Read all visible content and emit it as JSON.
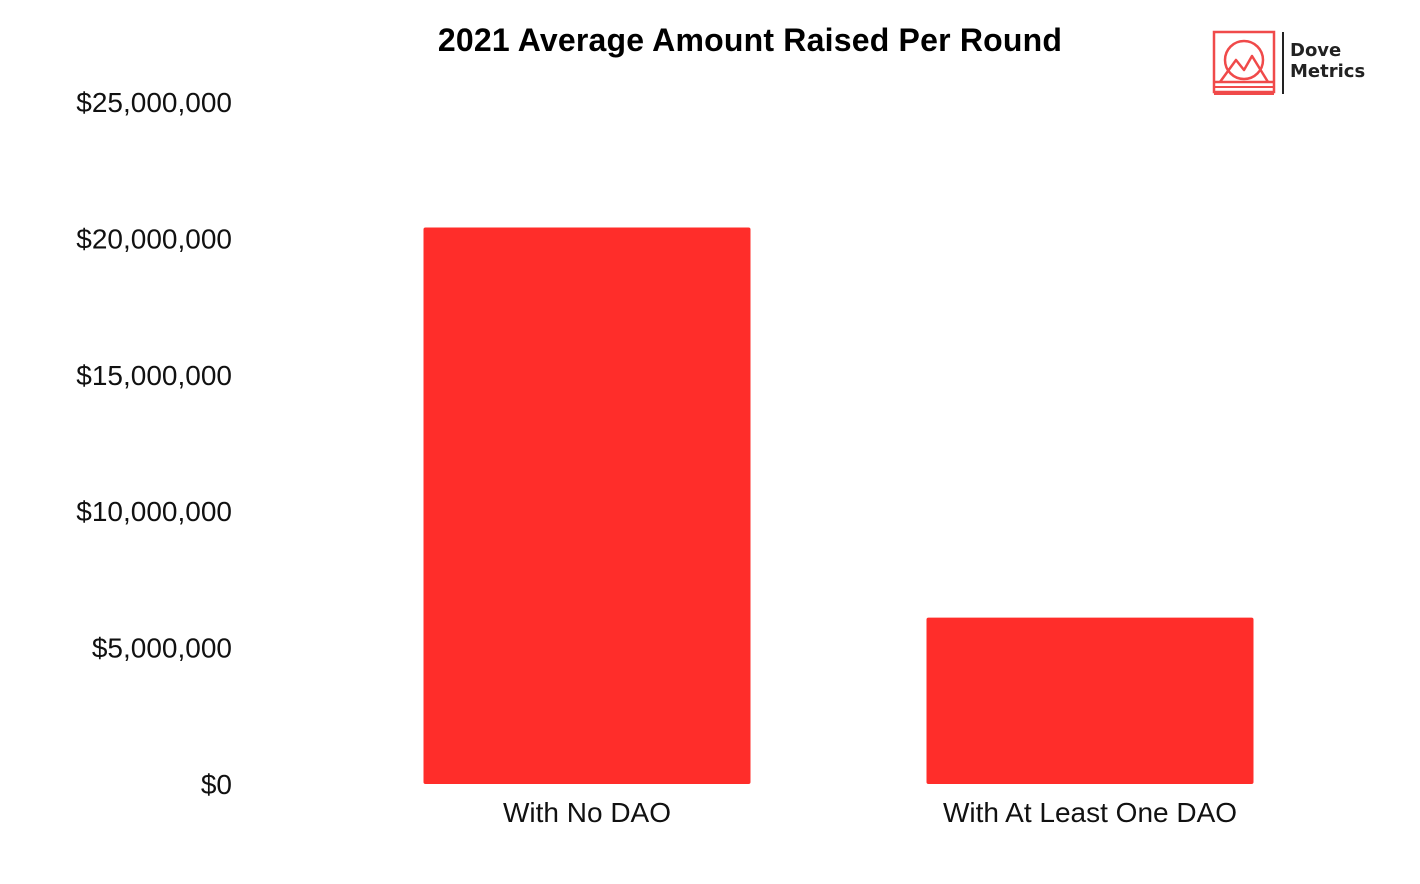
{
  "chart_data": {
    "type": "bar",
    "title": "2021 Average Amount Raised Per Round",
    "xlabel": "",
    "ylabel": "",
    "categories": [
      "With No DAO",
      "With At Least One DAO"
    ],
    "values": [
      20400000,
      6100000
    ],
    "ylim": [
      0,
      25000000
    ],
    "yticks": [
      0,
      5000000,
      10000000,
      15000000,
      20000000,
      25000000
    ],
    "ytick_labels": [
      "$0",
      "$5,000,000",
      "$10,000,000",
      "$15,000,000",
      "$20,000,000",
      "$25,000,000"
    ],
    "grid": false,
    "bar_color": "#ff2d2a"
  },
  "logo": {
    "line1": "Dove",
    "line2": "Metrics",
    "color": "#f04a4a"
  }
}
